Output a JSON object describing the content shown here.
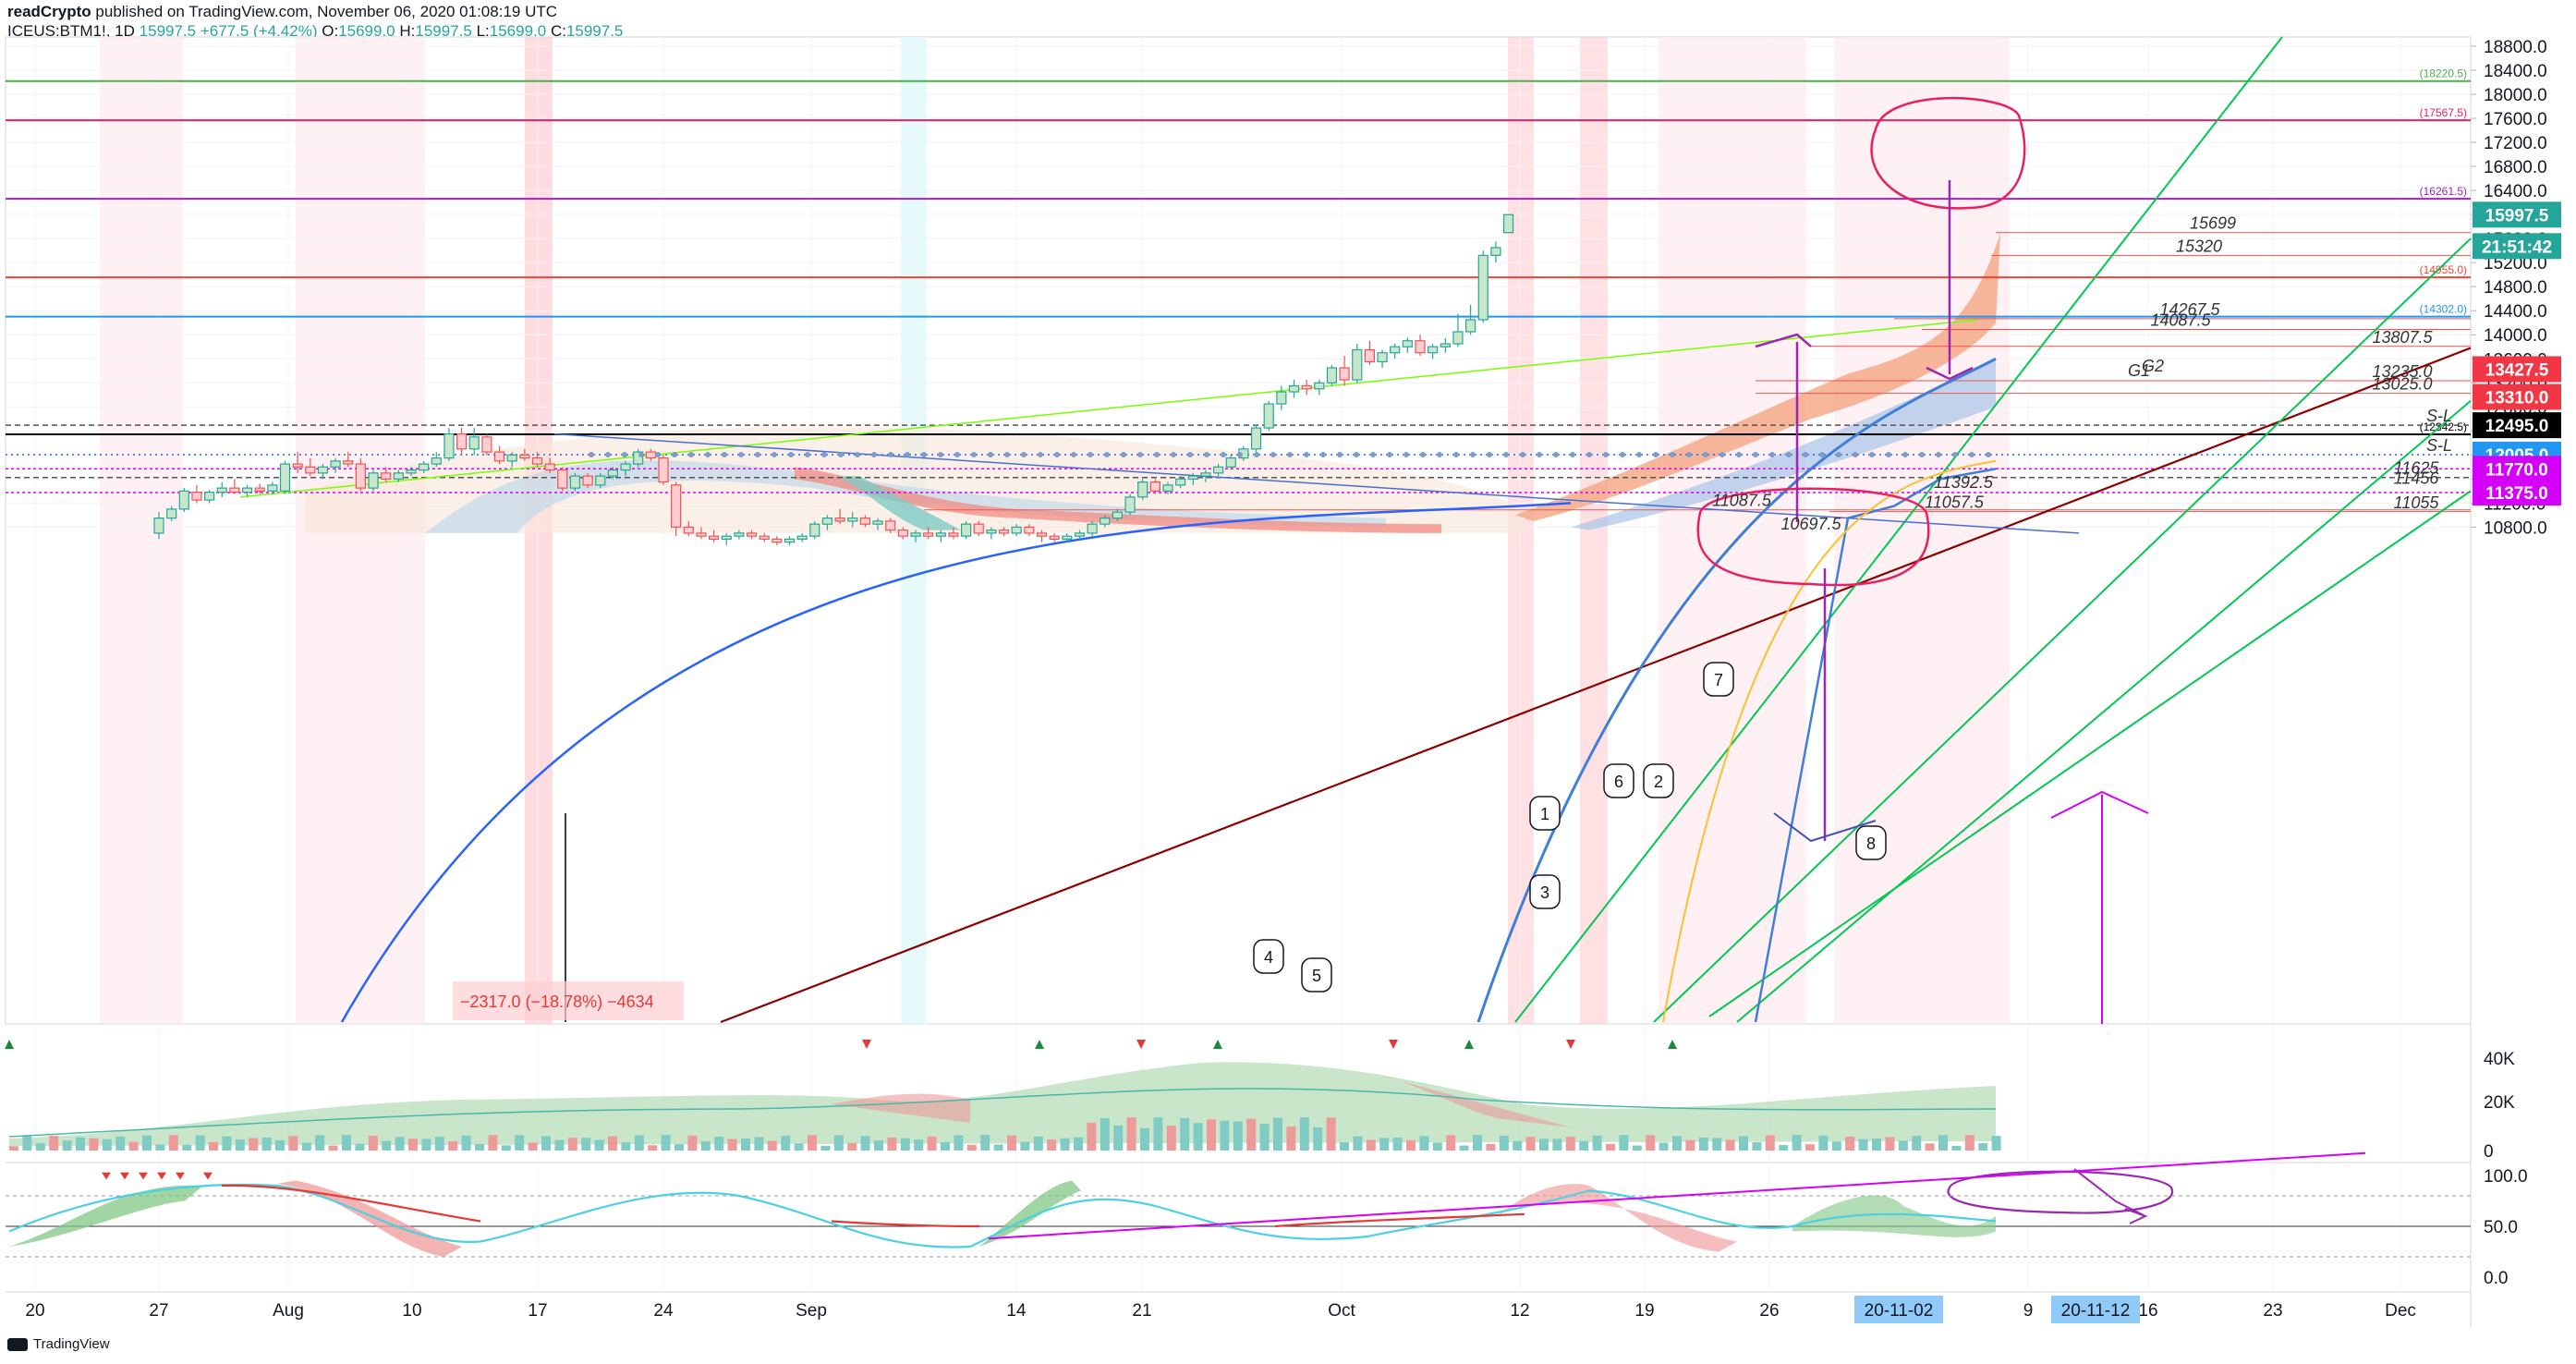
{
  "header": {
    "line1_author": "readCrypto",
    "line1_rest": " published on TradingView.com, November 06, 2020 01:08:19 UTC",
    "symbol": "ICEUS:BTM1!, 1D",
    "last": "15997.5",
    "change": "+677.5 (+4.42%)",
    "o_label": "O:",
    "o": "15699.0",
    "h_label": "H:",
    "h": "15997.5",
    "l_label": "L:",
    "l": "15699.0",
    "c_label": "C:",
    "c": "15997.5"
  },
  "footer_logo": "TradingView",
  "colors": {
    "up": "#26a69a",
    "down": "#ef5350",
    "pink": "#e91e63",
    "purple": "#9c27b0",
    "magenta": "#d500f9",
    "green": "#00e676",
    "darkred": "#8b0000",
    "blue": "#2196f3"
  },
  "chart_data": {
    "type": "candlestick",
    "price_axis": {
      "labels": [
        "18800.0",
        "18400.0",
        "18000.0",
        "17600.0",
        "17200.0",
        "16800.0",
        "16400.0",
        "16000.0",
        "15600.0",
        "15200.0",
        "14800.0",
        "14400.0",
        "14000.0",
        "13600.0",
        "13200.0",
        "12800.0",
        "12400.0",
        "12000.0",
        "11600.0",
        "11200.0",
        "10800.0"
      ]
    },
    "time_axis": {
      "labels": [
        "20",
        "27",
        "Aug",
        "10",
        "17",
        "24",
        "Sep",
        "14",
        "21",
        "Oct",
        "12",
        "19",
        "26",
        "9",
        "16",
        "23",
        "Dec"
      ],
      "highlight": [
        "20-11-02",
        "20-11-12"
      ]
    },
    "price_badges": [
      {
        "text": "15997.5",
        "color": "#26a69a",
        "price": 15997.5
      },
      {
        "text": "21:51:42",
        "color": "#26a69a",
        "price": 15750
      },
      {
        "text": "13427.5",
        "color": "#f23645",
        "price": 13427.5
      },
      {
        "text": "13310.0",
        "color": "#f23645",
        "price": 13310
      },
      {
        "text": "12495.0",
        "color": "#000000",
        "price": 12495
      },
      {
        "text": "12005.0",
        "color": "#2196f3",
        "price": 12005
      },
      {
        "text": "11770.0",
        "color": "#d500f9",
        "price": 11770
      },
      {
        "text": "11375.0",
        "color": "#d500f9",
        "price": 11375
      }
    ],
    "horizontal_levels": [
      {
        "price": 18220.5,
        "label": "(18220.5)",
        "color": "#4caf50"
      },
      {
        "price": 17567.5,
        "label": "(17567.5)",
        "color": "#e91e63"
      },
      {
        "price": 16261.5,
        "label": "(16261.5)",
        "color": "#9c27b0"
      },
      {
        "price": 14955.0,
        "label": "(14955.0)",
        "color": "#f44336"
      },
      {
        "price": 14302.0,
        "label": "(14302.0)",
        "color": "#2196f3"
      },
      {
        "price": 12342.5,
        "label": "(12342.5)",
        "color": "#000000"
      }
    ],
    "level_texts": [
      {
        "text": "15699",
        "price": 15699
      },
      {
        "text": "15320",
        "price": 15320
      },
      {
        "text": "14267.5",
        "price": 14267.5
      },
      {
        "text": "14087.5",
        "price": 14087.5
      },
      {
        "text": "13807.5",
        "price": 13807.5
      },
      {
        "text": "13235.0",
        "price": 13235
      },
      {
        "text": "13025.0",
        "price": 13025
      },
      {
        "text": "11625",
        "price": 11625
      },
      {
        "text": "11456",
        "price": 11456
      },
      {
        "text": "11392.5",
        "price": 11392.5
      },
      {
        "text": "11087.5",
        "price": 11087.5
      },
      {
        "text": "11057.5",
        "price": 11057.5
      },
      {
        "text": "11055",
        "price": 11055
      },
      {
        "text": "10697.5",
        "price": 10697.5
      },
      {
        "text": "S-L",
        "price": 12495
      },
      {
        "text": "S-L",
        "price": 12005
      },
      {
        "text": "G2",
        "price": 13330
      },
      {
        "text": "G1",
        "price": 13250
      }
    ],
    "callouts": [
      "1",
      "2",
      "3",
      "4",
      "5",
      "6",
      "7",
      "8"
    ],
    "measure_label": "−2317.0 (−18.78%) −4634",
    "candles": [
      [
        10700,
        11050,
        10600,
        10950
      ],
      [
        10950,
        11150,
        10900,
        11100
      ],
      [
        11100,
        11450,
        11050,
        11400
      ],
      [
        11380,
        11500,
        11200,
        11250
      ],
      [
        11250,
        11420,
        11200,
        11380
      ],
      [
        11380,
        11550,
        11300,
        11450
      ],
      [
        11450,
        11600,
        11350,
        11380
      ],
      [
        11380,
        11500,
        11300,
        11450
      ],
      [
        11450,
        11520,
        11350,
        11400
      ],
      [
        11400,
        11550,
        11350,
        11500
      ],
      [
        11400,
        11900,
        11350,
        11850
      ],
      [
        11850,
        12050,
        11700,
        11800
      ],
      [
        11800,
        11950,
        11650,
        11700
      ],
      [
        11700,
        11850,
        11600,
        11800
      ],
      [
        11800,
        11950,
        11700,
        11900
      ],
      [
        11900,
        12050,
        11800,
        11850
      ],
      [
        11850,
        11950,
        11400,
        11450
      ],
      [
        11450,
        11750,
        11400,
        11700
      ],
      [
        11700,
        11800,
        11550,
        11600
      ],
      [
        11600,
        11750,
        11550,
        11700
      ],
      [
        11700,
        11800,
        11650,
        11750
      ],
      [
        11750,
        11900,
        11700,
        11850
      ],
      [
        11850,
        12050,
        11800,
        11950
      ],
      [
        11950,
        12450,
        11900,
        12350
      ],
      [
        12350,
        12450,
        12000,
        12100
      ],
      [
        12100,
        12450,
        12000,
        12300
      ],
      [
        12300,
        12350,
        12000,
        12050
      ],
      [
        12050,
        12150,
        11850,
        11900
      ],
      [
        11900,
        12050,
        11800,
        12000
      ],
      [
        12000,
        12100,
        11900,
        11950
      ],
      [
        11950,
        12050,
        11800,
        11850
      ],
      [
        11850,
        11950,
        11700,
        11750
      ],
      [
        11750,
        11800,
        11400,
        11450
      ],
      [
        11450,
        11700,
        11400,
        11650
      ],
      [
        11650,
        11700,
        11450,
        11500
      ],
      [
        11500,
        11700,
        11450,
        11650
      ],
      [
        11650,
        11800,
        11600,
        11750
      ],
      [
        11750,
        11900,
        11650,
        11850
      ],
      [
        11850,
        12100,
        11800,
        12050
      ],
      [
        12050,
        12100,
        11900,
        11950
      ],
      [
        11950,
        12000,
        11500,
        11550
      ],
      [
        11500,
        11550,
        10650,
        10800
      ],
      [
        10800,
        10900,
        10650,
        10700
      ],
      [
        10700,
        10800,
        10600,
        10650
      ],
      [
        10650,
        10750,
        10550,
        10600
      ],
      [
        10600,
        10700,
        10500,
        10650
      ],
      [
        10650,
        10750,
        10600,
        10700
      ],
      [
        10700,
        10750,
        10600,
        10650
      ],
      [
        10650,
        10700,
        10550,
        10600
      ],
      [
        10600,
        10650,
        10500,
        10550
      ],
      [
        10550,
        10650,
        10500,
        10600
      ],
      [
        10600,
        10700,
        10550,
        10650
      ],
      [
        10650,
        10900,
        10600,
        10850
      ],
      [
        10850,
        11000,
        10750,
        10950
      ],
      [
        10950,
        11100,
        10850,
        10900
      ],
      [
        10900,
        11050,
        10800,
        10950
      ],
      [
        10950,
        11000,
        10800,
        10850
      ],
      [
        10850,
        10950,
        10750,
        10900
      ],
      [
        10900,
        10950,
        10700,
        10750
      ],
      [
        10750,
        10800,
        10600,
        10650
      ],
      [
        10650,
        10750,
        10550,
        10700
      ],
      [
        10700,
        10800,
        10600,
        10650
      ],
      [
        10650,
        10750,
        10550,
        10700
      ],
      [
        10700,
        10800,
        10600,
        10650
      ],
      [
        10650,
        10900,
        10600,
        10850
      ],
      [
        10850,
        10900,
        10650,
        10700
      ],
      [
        10700,
        10800,
        10600,
        10750
      ],
      [
        10750,
        10800,
        10650,
        10700
      ],
      [
        10700,
        10850,
        10650,
        10800
      ],
      [
        10800,
        10850,
        10650,
        10700
      ],
      [
        10700,
        10750,
        10550,
        10650
      ],
      [
        10650,
        10700,
        10550,
        10600
      ],
      [
        10600,
        10700,
        10550,
        10650
      ],
      [
        10650,
        10750,
        10600,
        10700
      ],
      [
        10700,
        10900,
        10650,
        10850
      ],
      [
        10850,
        11000,
        10800,
        10950
      ],
      [
        10950,
        11100,
        10900,
        11050
      ],
      [
        11050,
        11350,
        11000,
        11300
      ],
      [
        11300,
        11600,
        11250,
        11550
      ],
      [
        11550,
        11600,
        11350,
        11400
      ],
      [
        11400,
        11550,
        11350,
        11500
      ],
      [
        11500,
        11650,
        11450,
        11600
      ],
      [
        11600,
        11700,
        11500,
        11650
      ],
      [
        11650,
        11750,
        11550,
        11700
      ],
      [
        11700,
        11850,
        11650,
        11800
      ],
      [
        11800,
        12000,
        11750,
        11950
      ],
      [
        11950,
        12150,
        11900,
        12100
      ],
      [
        12100,
        12500,
        12050,
        12450
      ],
      [
        12450,
        12900,
        12400,
        12850
      ],
      [
        12850,
        13150,
        12750,
        13050
      ],
      [
        13050,
        13250,
        12950,
        13150
      ],
      [
        13150,
        13250,
        13000,
        13100
      ],
      [
        13100,
        13250,
        13000,
        13200
      ],
      [
        13200,
        13500,
        13150,
        13450
      ],
      [
        13450,
        13650,
        13150,
        13250
      ],
      [
        13250,
        13850,
        13200,
        13750
      ],
      [
        13750,
        13900,
        13500,
        13550
      ],
      [
        13550,
        13750,
        13450,
        13700
      ],
      [
        13700,
        13850,
        13600,
        13800
      ],
      [
        13800,
        13950,
        13700,
        13900
      ],
      [
        13900,
        14000,
        13650,
        13700
      ],
      [
        13700,
        13850,
        13600,
        13800
      ],
      [
        13800,
        13950,
        13700,
        13850
      ],
      [
        13850,
        14350,
        13800,
        14050
      ],
      [
        14050,
        14500,
        14000,
        14250
      ],
      [
        14250,
        15400,
        14200,
        15320
      ],
      [
        15320,
        15550,
        15200,
        15450
      ],
      [
        15699,
        15997.5,
        15699,
        15997.5
      ]
    ],
    "volume_axis": {
      "labels": [
        "40K",
        "20K",
        "0"
      ]
    },
    "oscillator_axis": {
      "labels": [
        "100.0",
        "50.0",
        "0.0"
      ]
    }
  }
}
